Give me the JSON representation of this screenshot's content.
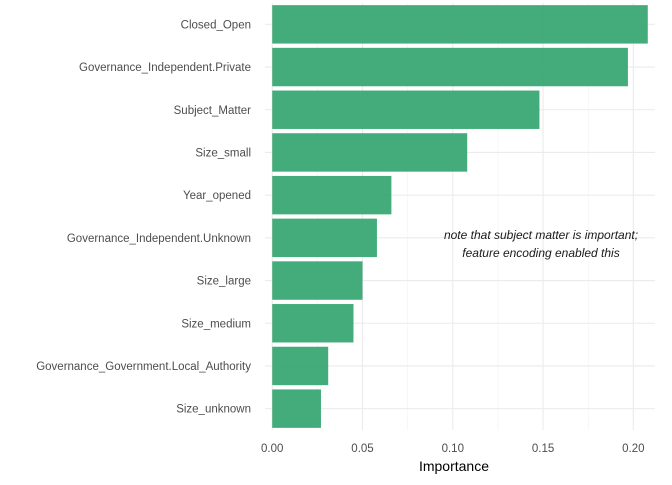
{
  "chart_data": {
    "type": "bar",
    "orientation": "horizontal",
    "categories": [
      "Closed_Open",
      "Governance_Independent.Private",
      "Subject_Matter",
      "Size_small",
      "Year_opened",
      "Governance_Independent.Unknown",
      "Size_large",
      "Size_medium",
      "Governance_Government.Local_Authority",
      "Size_unknown"
    ],
    "values": [
      0.208,
      0.197,
      0.148,
      0.108,
      0.066,
      0.058,
      0.05,
      0.045,
      0.031,
      0.027
    ],
    "xlabel": "Importance",
    "ylabel": "",
    "xlim": [
      -0.004,
      0.212
    ],
    "xticks": [
      0.0,
      0.05,
      0.1,
      0.15,
      0.2
    ],
    "xtick_labels": [
      "0.00",
      "0.05",
      "0.10",
      "0.15",
      "0.20"
    ],
    "grid": true,
    "bar_color": "#3aa673",
    "annotation": {
      "lines": [
        "note that subject matter is important;",
        "feature encoding enabled this"
      ]
    }
  }
}
